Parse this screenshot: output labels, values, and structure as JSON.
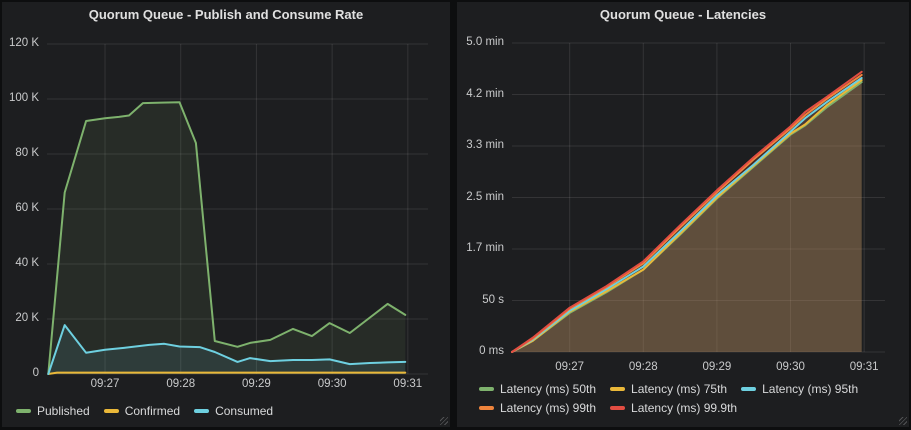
{
  "panels": [
    {
      "title": "Quorum Queue - Publish and Consume Rate"
    },
    {
      "title": "Quorum Queue - Latencies"
    }
  ],
  "colors": {
    "green": "#7EB26D",
    "yellow": "#EAB839",
    "cyan": "#6ED0E0",
    "orange": "#EF843C",
    "red": "#E24D42",
    "panel_bg": "#1d1e20",
    "page_bg": "#0d0e0f",
    "grid": "rgba(255,255,255,0.10)",
    "tick_text": "#c9cacb",
    "legend_text": "#d8d9da",
    "title_text": "#e0e0e0"
  },
  "chart_data": [
    {
      "type": "area",
      "title": "Quorum Queue - Publish and Consume Rate",
      "x_unit": "seconds after 09:26:00",
      "x_range": [
        14,
        316
      ],
      "x_ticks": [
        {
          "x": 60,
          "label": "09:27"
        },
        {
          "x": 120,
          "label": "09:28"
        },
        {
          "x": 180,
          "label": "09:29"
        },
        {
          "x": 240,
          "label": "09:30"
        },
        {
          "x": 300,
          "label": "09:31"
        }
      ],
      "y_unit": "thousands of messages per second",
      "y_range": [
        0,
        120
      ],
      "y_ticks": [
        {
          "y": 0,
          "label": "0"
        },
        {
          "y": 20,
          "label": "20 K"
        },
        {
          "y": 40,
          "label": "40 K"
        },
        {
          "y": 60,
          "label": "60 K"
        },
        {
          "y": 80,
          "label": "80 K"
        },
        {
          "y": 100,
          "label": "100 K"
        },
        {
          "y": 120,
          "label": "120 K"
        }
      ],
      "grid": true,
      "legend_position": "bottom-left",
      "fill_opacity": 0.1,
      "line_width": 2,
      "series": [
        {
          "name": "Published",
          "color": "#7EB26D",
          "points": [
            [
              15,
              0
            ],
            [
              28,
              66
            ],
            [
              45,
              92
            ],
            [
              60,
              93
            ],
            [
              71,
              93.5
            ],
            [
              79,
              94
            ],
            [
              90,
              98.5
            ],
            [
              105,
              98.7
            ],
            [
              119,
              98.8
            ],
            [
              132,
              84
            ],
            [
              147,
              12
            ],
            [
              165,
              9.9
            ],
            [
              175,
              11.3
            ],
            [
              191,
              12.4
            ],
            [
              209,
              16.4
            ],
            [
              224,
              13.8
            ],
            [
              238,
              18.5
            ],
            [
              254,
              14.9
            ],
            [
              284,
              25.5
            ],
            [
              298,
              21.5
            ]
          ]
        },
        {
          "name": "Confirmed",
          "color": "#EAB839",
          "points": [
            [
              15,
              0
            ],
            [
              22,
              0.5
            ],
            [
              298,
              0.5
            ]
          ]
        },
        {
          "name": "Consumed",
          "color": "#6ED0E0",
          "points": [
            [
              15,
              0
            ],
            [
              28,
              17.8
            ],
            [
              45,
              7.7
            ],
            [
              60,
              8.8
            ],
            [
              75,
              9.5
            ],
            [
              95,
              10.6
            ],
            [
              107,
              11
            ],
            [
              119,
              10
            ],
            [
              135,
              9.8
            ],
            [
              147,
              8
            ],
            [
              165,
              4.4
            ],
            [
              175,
              5.8
            ],
            [
              191,
              4.7
            ],
            [
              209,
              5.1
            ],
            [
              224,
              5.1
            ],
            [
              238,
              5.3
            ],
            [
              254,
              3.6
            ],
            [
              270,
              4
            ],
            [
              284,
              4.2
            ],
            [
              298,
              4.4
            ]
          ]
        }
      ]
    },
    {
      "type": "area",
      "title": "Quorum Queue - Latencies",
      "x_unit": "seconds after 09:26:00",
      "x_range": [
        13,
        317
      ],
      "x_ticks": [
        {
          "x": 60,
          "label": "09:27"
        },
        {
          "x": 120,
          "label": "09:28"
        },
        {
          "x": 180,
          "label": "09:29"
        },
        {
          "x": 240,
          "label": "09:30"
        },
        {
          "x": 300,
          "label": "09:31"
        }
      ],
      "y_unit": "latency (seconds)",
      "y_range": [
        0,
        300
      ],
      "y_ticks": [
        {
          "y": 0,
          "label": "0 ms"
        },
        {
          "y": 50,
          "label": "50 s"
        },
        {
          "y": 100,
          "label": "1.7 min"
        },
        {
          "y": 150,
          "label": "2.5 min"
        },
        {
          "y": 200,
          "label": "3.3 min"
        },
        {
          "y": 250,
          "label": "4.2 min"
        },
        {
          "y": 300,
          "label": "5.0 min"
        }
      ],
      "grid": true,
      "legend_position": "bottom-left",
      "fill_opacity": 0.1,
      "line_width": 2,
      "series": [
        {
          "name": "Latency (ms) 50th",
          "color": "#7EB26D",
          "points": [
            [
              13,
              0
            ],
            [
              30,
              11
            ],
            [
              60,
              38
            ],
            [
              90,
              58
            ],
            [
              120,
              80
            ],
            [
              150,
              114
            ],
            [
              180,
              149
            ],
            [
              210,
              180
            ],
            [
              240,
              211
            ],
            [
              252,
              220
            ],
            [
              270,
              238
            ],
            [
              298,
              262
            ]
          ]
        },
        {
          "name": "Latency (ms) 75th",
          "color": "#EAB839",
          "points": [
            [
              13,
              0
            ],
            [
              30,
              11
            ],
            [
              60,
              39
            ],
            [
              90,
              59
            ],
            [
              120,
              80
            ],
            [
              150,
              115
            ],
            [
              180,
              150
            ],
            [
              210,
              181
            ],
            [
              240,
              212
            ],
            [
              252,
              221
            ],
            [
              270,
              240
            ],
            [
              298,
              264
            ]
          ]
        },
        {
          "name": "Latency (ms) 95th",
          "color": "#6ED0E0",
          "points": [
            [
              13,
              0
            ],
            [
              30,
              12
            ],
            [
              60,
              40
            ],
            [
              90,
              61
            ],
            [
              120,
              83
            ],
            [
              150,
              117
            ],
            [
              180,
              152
            ],
            [
              210,
              182
            ],
            [
              240,
              214
            ],
            [
              252,
              227
            ],
            [
              270,
              243
            ],
            [
              298,
              266
            ]
          ]
        },
        {
          "name": "Latency (ms) 99th",
          "color": "#EF843C",
          "points": [
            [
              13,
              0
            ],
            [
              30,
              13
            ],
            [
              60,
              42
            ],
            [
              90,
              63
            ],
            [
              120,
              86
            ],
            [
              150,
              121
            ],
            [
              180,
              155
            ],
            [
              210,
              187
            ],
            [
              240,
              217
            ],
            [
              252,
              230
            ],
            [
              270,
              246
            ],
            [
              298,
              269
            ]
          ]
        },
        {
          "name": "Latency (ms) 99.9th",
          "color": "#E24D42",
          "points": [
            [
              13,
              0
            ],
            [
              30,
              14
            ],
            [
              60,
              43
            ],
            [
              90,
              64
            ],
            [
              120,
              88
            ],
            [
              150,
              123
            ],
            [
              180,
              157
            ],
            [
              210,
              189
            ],
            [
              240,
              219
            ],
            [
              252,
              233
            ],
            [
              270,
              248
            ],
            [
              298,
              272
            ]
          ]
        }
      ]
    }
  ]
}
